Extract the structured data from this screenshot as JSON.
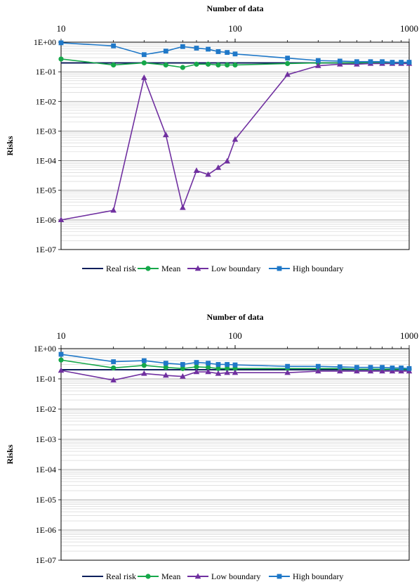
{
  "chart_data": [
    {
      "type": "line",
      "xlabel": "Number of data",
      "ylabel": "Risks",
      "x_scale": "log",
      "y_scale": "log",
      "xlim": [
        10,
        1000
      ],
      "ylim": [
        1e-07,
        1
      ],
      "x_ticks": [
        10,
        100,
        1000
      ],
      "x_tick_labels": [
        "10",
        "100",
        "1000"
      ],
      "y_ticks": [
        1,
        0.1,
        0.01,
        0.001,
        0.0001,
        1e-05,
        1e-06,
        1e-07
      ],
      "y_tick_labels": [
        "1E+00",
        "1E-01",
        "1E-02",
        "1E-03",
        "1E-04",
        "1E-05",
        "1E-06",
        "1E-07"
      ],
      "grid": true,
      "legend_position": "bottom",
      "x": [
        10,
        20,
        30,
        40,
        50,
        60,
        70,
        80,
        90,
        100,
        200,
        300,
        400,
        500,
        600,
        700,
        800,
        900,
        1000
      ],
      "series": [
        {
          "name": "Real risk",
          "color": "#0d1f5c",
          "marker": "none",
          "values": [
            0.2,
            0.2,
            0.2,
            0.2,
            0.2,
            0.2,
            0.2,
            0.2,
            0.2,
            0.2,
            0.2,
            0.2,
            0.2,
            0.2,
            0.2,
            0.2,
            0.2,
            0.2,
            0.2
          ]
        },
        {
          "name": "Mean",
          "color": "#16a84a",
          "marker": "circle",
          "values": [
            0.27,
            0.17,
            0.2,
            0.17,
            0.14,
            0.18,
            0.18,
            0.17,
            0.17,
            0.17,
            0.19,
            0.2,
            0.2,
            0.2,
            0.2,
            0.2,
            0.2,
            0.2,
            0.2
          ]
        },
        {
          "name": "Low boundary",
          "color": "#7030a0",
          "marker": "triangle",
          "values": [
            1e-06,
            2.1e-06,
            0.063,
            0.00074,
            2.6e-06,
            4.6e-05,
            3.4e-05,
            5.8e-05,
            9.6e-05,
            0.00052,
            0.08,
            0.16,
            0.18,
            0.18,
            0.19,
            0.19,
            0.19,
            0.19,
            0.19
          ]
        },
        {
          "name": "High boundary",
          "color": "#1f78c8",
          "marker": "square",
          "values": [
            0.95,
            0.75,
            0.38,
            0.5,
            0.71,
            0.63,
            0.58,
            0.48,
            0.45,
            0.4,
            0.29,
            0.24,
            0.23,
            0.22,
            0.22,
            0.22,
            0.21,
            0.21,
            0.21
          ]
        }
      ]
    },
    {
      "type": "line",
      "xlabel": "Number of data",
      "ylabel": "Risks",
      "x_scale": "log",
      "y_scale": "log",
      "xlim": [
        10,
        1000
      ],
      "ylim": [
        1e-07,
        1
      ],
      "x_ticks": [
        10,
        100,
        1000
      ],
      "x_tick_labels": [
        "10",
        "100",
        "1000"
      ],
      "y_ticks": [
        1,
        0.1,
        0.01,
        0.001,
        0.0001,
        1e-05,
        1e-06,
        1e-07
      ],
      "y_tick_labels": [
        "1E+00",
        "1E-01",
        "1E-02",
        "1E-03",
        "1E-04",
        "1E-05",
        "1E-06",
        "1E-07"
      ],
      "grid": true,
      "legend_position": "bottom",
      "x": [
        10,
        20,
        30,
        40,
        50,
        60,
        70,
        80,
        90,
        100,
        200,
        300,
        400,
        500,
        600,
        700,
        800,
        900,
        1000
      ],
      "series": [
        {
          "name": "Real risk",
          "color": "#0d1f5c",
          "marker": "none",
          "values": [
            0.2,
            0.2,
            0.2,
            0.2,
            0.2,
            0.2,
            0.2,
            0.2,
            0.2,
            0.2,
            0.2,
            0.2,
            0.2,
            0.2,
            0.2,
            0.2,
            0.2,
            0.2,
            0.2
          ]
        },
        {
          "name": "Mean",
          "color": "#16a84a",
          "marker": "circle",
          "values": [
            0.42,
            0.23,
            0.28,
            0.24,
            0.22,
            0.25,
            0.24,
            0.22,
            0.22,
            0.22,
            0.22,
            0.22,
            0.22,
            0.21,
            0.21,
            0.21,
            0.21,
            0.21,
            0.21
          ]
        },
        {
          "name": "Low boundary",
          "color": "#7030a0",
          "marker": "triangle",
          "values": [
            0.19,
            0.09,
            0.15,
            0.13,
            0.12,
            0.17,
            0.17,
            0.15,
            0.16,
            0.16,
            0.16,
            0.18,
            0.18,
            0.18,
            0.18,
            0.18,
            0.18,
            0.18,
            0.18
          ]
        },
        {
          "name": "High boundary",
          "color": "#1f78c8",
          "marker": "square",
          "values": [
            0.65,
            0.37,
            0.4,
            0.33,
            0.3,
            0.35,
            0.33,
            0.3,
            0.3,
            0.29,
            0.26,
            0.26,
            0.25,
            0.24,
            0.24,
            0.24,
            0.23,
            0.23,
            0.22
          ]
        }
      ]
    }
  ]
}
